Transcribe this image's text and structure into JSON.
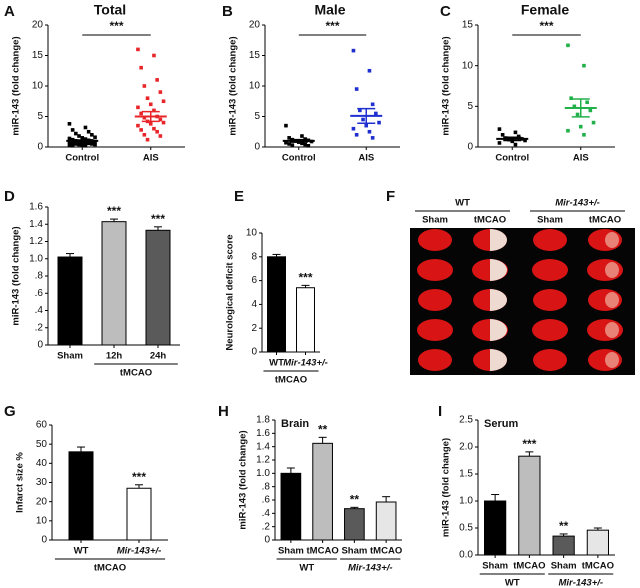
{
  "chart_data": [
    {
      "panel": "A",
      "type": "scatter",
      "title": "Total",
      "ylabel": "miR-143 (fold change)",
      "categories": [
        "Control",
        "AIS"
      ],
      "colors": [
        "#000000",
        "#e8262a"
      ],
      "points": [
        [
          3.8,
          3.2,
          2.8,
          2.5,
          2.2,
          2.0,
          1.8,
          1.6,
          1.5,
          1.4,
          1.3,
          1.2,
          1.1,
          1.0,
          1.0,
          0.9,
          0.9,
          0.8,
          0.8,
          0.7,
          0.7,
          0.6,
          0.5,
          0.5,
          0.4,
          0.4,
          0.3,
          0.3,
          0.2,
          0.2
        ],
        [
          16,
          15,
          13,
          11,
          10,
          9,
          8,
          7.5,
          7,
          6.5,
          6,
          5.5,
          5,
          4.8,
          4.5,
          4.2,
          4,
          3.8,
          3.5,
          3,
          2.8,
          2.5,
          2,
          1.8,
          1.2
        ]
      ],
      "means": [
        1.0,
        5.0
      ],
      "sems": [
        0.15,
        0.8
      ],
      "significance": "***",
      "ylim": [
        0,
        20
      ],
      "yticks": [
        0,
        5,
        10,
        15,
        20
      ]
    },
    {
      "panel": "B",
      "type": "scatter",
      "title": "Male",
      "ylabel": "miR-143 (fold change)",
      "categories": [
        "Control",
        "AIS"
      ],
      "colors": [
        "#000000",
        "#1f2fd0"
      ],
      "points": [
        [
          3.5,
          1.8,
          1.5,
          1.3,
          1.2,
          1.1,
          1.0,
          0.9,
          0.8,
          0.7,
          0.6,
          0.5,
          0.4,
          0.3,
          0.2
        ],
        [
          15.8,
          12.5,
          9.5,
          7,
          6,
          5.5,
          4.5,
          4,
          3.5,
          3,
          2.5,
          2,
          1.5
        ]
      ],
      "means": [
        1.0,
        5.1
      ],
      "sems": [
        0.2,
        1.2
      ],
      "significance": "***",
      "ylim": [
        0,
        20
      ],
      "yticks": [
        0,
        5,
        10,
        15,
        20
      ]
    },
    {
      "panel": "C",
      "type": "scatter",
      "title": "Female",
      "ylabel": "miR-143 (fold change)",
      "categories": [
        "Control",
        "AIS"
      ],
      "colors": [
        "#000000",
        "#22b04a"
      ],
      "points": [
        [
          2.2,
          1.8,
          1.5,
          1.3,
          1.1,
          1.0,
          0.9,
          0.8,
          0.7,
          0.5,
          0.3
        ],
        [
          12.5,
          10,
          6,
          5.5,
          5,
          4.5,
          4,
          3,
          2.5,
          2,
          1.5
        ]
      ],
      "means": [
        1.0,
        4.8
      ],
      "sems": [
        0.2,
        1.1
      ],
      "significance": "***",
      "ylim": [
        0,
        15
      ],
      "yticks": [
        0,
        5,
        10,
        15
      ]
    },
    {
      "panel": "D",
      "type": "bar",
      "ylabel": "miR-143 (fold change)",
      "categories": [
        "Sham",
        "12h",
        "24h"
      ],
      "values": [
        1.02,
        1.43,
        1.33
      ],
      "errors": [
        0.04,
        0.03,
        0.04
      ],
      "colors": [
        "#000000",
        "#bdbdbd",
        "#5a5a5a"
      ],
      "annotations": [
        null,
        "***",
        "***"
      ],
      "groups": [
        {
          "label": "tMCAO",
          "from": 1,
          "to": 2
        }
      ],
      "ylim": [
        0,
        1.6
      ],
      "yticks": [
        0,
        {
          "value": 0.2,
          "label": ".2"
        },
        {
          "value": 0.4,
          "label": ".4"
        },
        {
          "value": 0.6,
          "label": ".6"
        },
        {
          "value": 0.8,
          "label": ".8"
        },
        {
          "value": 1,
          "label": "1.0"
        },
        1.2,
        1.4,
        1.6
      ]
    },
    {
      "panel": "E",
      "type": "bar",
      "ylabel": "Neurological deficit score",
      "categories": [
        "WT",
        "Mir-143+/-"
      ],
      "values": [
        8.0,
        5.4
      ],
      "errors": [
        0.2,
        0.2
      ],
      "colors": [
        "#000000",
        "#ffffff"
      ],
      "annotations": [
        null,
        "***"
      ],
      "groups": [
        {
          "label": "tMCAO",
          "from": 0,
          "to": 1
        }
      ],
      "ylim": [
        0,
        10
      ],
      "yticks": [
        0,
        2,
        4,
        6,
        8,
        10
      ]
    },
    {
      "panel": "F",
      "type": "image",
      "group_labels": [
        "WT",
        "Mir-143+/-"
      ],
      "column_labels": [
        "Sham",
        "tMCAO",
        "Sham",
        "tMCAO"
      ]
    },
    {
      "panel": "G",
      "type": "bar",
      "ylabel": "Infarct size %",
      "categories": [
        "WT",
        "Mir-143+/-"
      ],
      "values": [
        46,
        27
      ],
      "errors": [
        2.5,
        1.8
      ],
      "colors": [
        "#000000",
        "#ffffff"
      ],
      "annotations": [
        null,
        "***"
      ],
      "groups": [
        {
          "label": "tMCAO",
          "from": 0,
          "to": 1
        }
      ],
      "ylim": [
        0,
        60
      ],
      "yticks": [
        0,
        10,
        20,
        30,
        40,
        50,
        60
      ]
    },
    {
      "panel": "H",
      "type": "bar",
      "title": "Brain",
      "ylabel": "miR-143 (fold change)",
      "categories": [
        "Sham",
        "tMCAO",
        "Sham",
        "tMCAO"
      ],
      "values": [
        1.0,
        1.45,
        0.47,
        0.57
      ],
      "errors": [
        0.08,
        0.09,
        0.02,
        0.08
      ],
      "colors": [
        "#000000",
        "#bdbdbd",
        "#5a5a5a",
        "#e6e6e6"
      ],
      "annotations": [
        null,
        "**",
        "**",
        null
      ],
      "groups": [
        {
          "label": "WT",
          "from": 0,
          "to": 1
        },
        {
          "label": "Mir-143+/-",
          "from": 2,
          "to": 3
        }
      ],
      "ylim": [
        0,
        1.8
      ],
      "yticks": [
        0,
        {
          "value": 0.2,
          "label": ".2"
        },
        {
          "value": 0.4,
          "label": ".4"
        },
        {
          "value": 0.6,
          "label": ".6"
        },
        {
          "value": 0.8,
          "label": ".8"
        },
        {
          "value": 1,
          "label": "1.0"
        },
        1.2,
        1.4,
        1.6,
        1.8
      ]
    },
    {
      "panel": "I",
      "type": "bar",
      "title": "Serum",
      "ylabel": "miR-143 (fold change)",
      "categories": [
        "Sham",
        "tMCAO",
        "Sham",
        "tMCAO"
      ],
      "values": [
        1.0,
        1.83,
        0.35,
        0.46
      ],
      "errors": [
        0.12,
        0.08,
        0.04,
        0.04
      ],
      "colors": [
        "#000000",
        "#bdbdbd",
        "#5a5a5a",
        "#e6e6e6"
      ],
      "annotations": [
        null,
        "***",
        "**",
        null
      ],
      "groups": [
        {
          "label": "WT",
          "from": 0,
          "to": 1
        },
        {
          "label": "Mir-143+/-",
          "from": 2,
          "to": 3
        }
      ],
      "ylim": [
        0,
        2.5
      ],
      "yticks": [
        {
          "value": 0,
          "label": "0.0"
        },
        0.5,
        {
          "value": 1,
          "label": "1.0"
        },
        1.5,
        {
          "value": 2,
          "label": "2.0"
        },
        2.5
      ]
    }
  ]
}
